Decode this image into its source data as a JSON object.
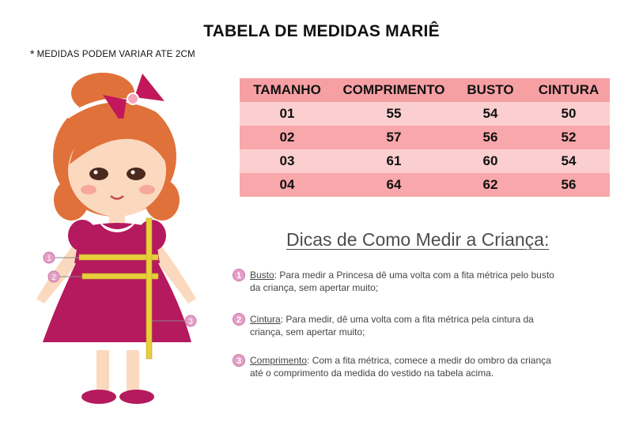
{
  "title": "TABELA DE MEDIDAS MARIÊ",
  "note": {
    "star": "*",
    "text": "MEDIDAS PODEM VARIAR ATE 2CM"
  },
  "table": {
    "headers": [
      "TAMANHO",
      "COMPRIMENTO",
      "BUSTO",
      "CINTURA"
    ],
    "rows": [
      [
        "01",
        "55",
        "54",
        "50"
      ],
      [
        "02",
        "57",
        "56",
        "52"
      ],
      [
        "03",
        "61",
        "60",
        "54"
      ],
      [
        "04",
        "64",
        "62",
        "56"
      ]
    ]
  },
  "tips": {
    "title": "Dicas de Como Medir a Criança:",
    "items": [
      {
        "num": "1",
        "term": "Busto",
        "text": ": Para medir a Princesa dê uma volta com a fita métrica pelo busto",
        "text2": "da criança, sem apertar muito;"
      },
      {
        "num": "2",
        "term": "Cintura",
        "text": ": Para medir, dê uma volta com a fita métrica pela cintura da",
        "text2": "criança, sem apertar muito;"
      },
      {
        "num": "3",
        "term": "Comprimento",
        "text": ": Com a fita métrica, comece a medir do ombro da criança",
        "text2": "até o comprimento da medida do vestido na tabela acima."
      }
    ]
  },
  "illustration": {
    "marker_labels": [
      "1",
      "2",
      "3"
    ],
    "colors": {
      "dress": "#b5195e",
      "hair": "#e0713a",
      "tape": "#e9cf3a",
      "bow": "#c2185b"
    }
  }
}
